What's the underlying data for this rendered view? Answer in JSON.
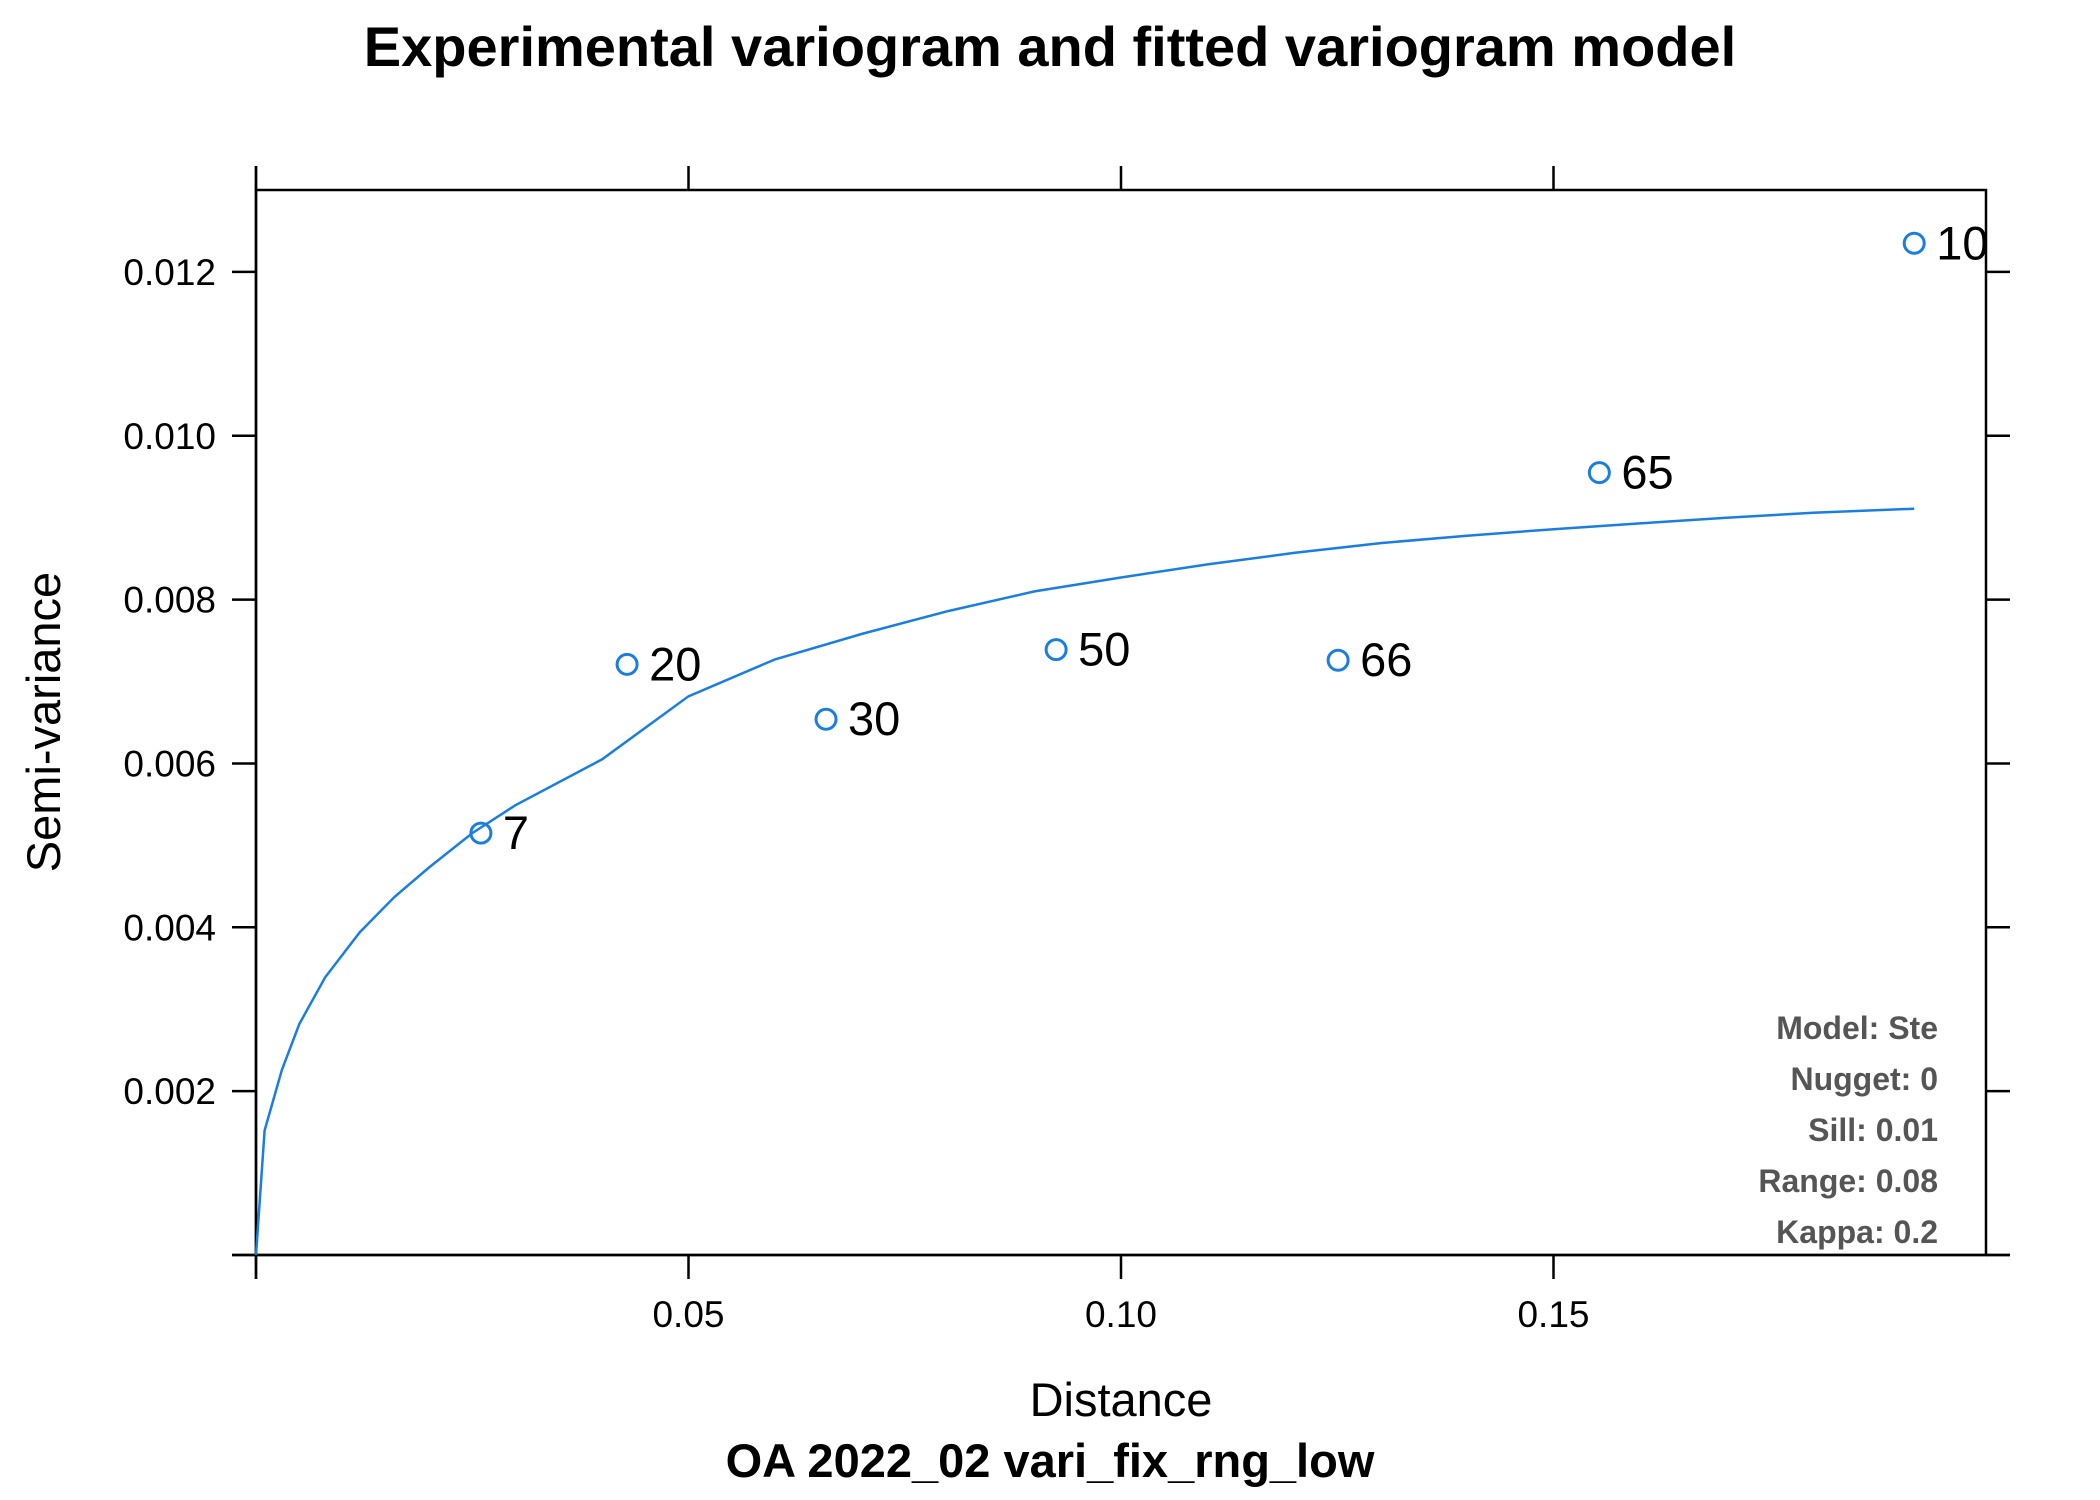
{
  "colors": {
    "series": "#1a7ee0",
    "axis": "#000000",
    "info": "#555555"
  },
  "chart_data": {
    "type": "scatter",
    "title": "Experimental variogram and fitted variogram model",
    "subtitle": "OA 2022_02 vari_fix_rng_low",
    "xlabel": "Distance",
    "ylabel": "Semi-variance",
    "xlim": [
      0,
      0.2
    ],
    "ylim": [
      0,
      0.013
    ],
    "x_ticks": [
      {
        "value": 0.05,
        "label": "0.05"
      },
      {
        "value": 0.1,
        "label": "0.10"
      },
      {
        "value": 0.15,
        "label": "0.15"
      }
    ],
    "y_ticks": [
      {
        "value": 0.002,
        "label": "0.002"
      },
      {
        "value": 0.004,
        "label": "0.004"
      },
      {
        "value": 0.006,
        "label": "0.006"
      },
      {
        "value": 0.008,
        "label": "0.008"
      },
      {
        "value": 0.01,
        "label": "0.010"
      },
      {
        "value": 0.012,
        "label": "0.012"
      }
    ],
    "points": [
      {
        "x": 0.026,
        "y": 0.00515,
        "label": "7"
      },
      {
        "x": 0.0429,
        "y": 0.00721,
        "label": "20"
      },
      {
        "x": 0.0659,
        "y": 0.00654,
        "label": "30"
      },
      {
        "x": 0.0925,
        "y": 0.00739,
        "label": "50"
      },
      {
        "x": 0.1251,
        "y": 0.00726,
        "label": "66"
      },
      {
        "x": 0.1553,
        "y": 0.00955,
        "label": "65"
      },
      {
        "x": 0.1917,
        "y": 0.01235,
        "label": "10"
      }
    ],
    "model_curve": {
      "x": [
        0.0,
        0.001,
        0.003,
        0.005,
        0.008,
        0.012,
        0.016,
        0.02,
        0.025,
        0.03,
        0.04,
        0.05,
        0.06,
        0.07,
        0.08,
        0.09,
        0.1,
        0.11,
        0.12,
        0.13,
        0.14,
        0.15,
        0.16,
        0.17,
        0.18,
        0.1917
      ],
      "y": [
        0.0,
        0.00152,
        0.00226,
        0.00282,
        0.00339,
        0.00394,
        0.00437,
        0.00473,
        0.00515,
        0.00549,
        0.00605,
        0.00682,
        0.00727,
        0.00758,
        0.00786,
        0.0081,
        0.00827,
        0.00843,
        0.00857,
        0.00869,
        0.00878,
        0.00886,
        0.00893,
        0.009,
        0.00906,
        0.00911
      ]
    },
    "model_info": [
      "Model: Ste",
      "Nugget: 0",
      "Sill: 0.01",
      "Range: 0.08",
      "Kappa: 0.2"
    ],
    "grid": false,
    "legend": "none"
  }
}
